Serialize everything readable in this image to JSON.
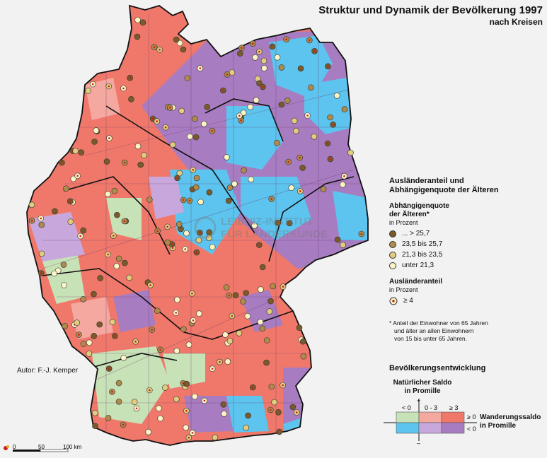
{
  "title": "Struktur und Dynamik der Bevölkerung 1997",
  "subtitle": "nach Kreisen",
  "author": "Autor:  F.-J. Kemper",
  "watermark_line1": "LEIBNIZ-INSTITUT",
  "watermark_line2": "FÜR LÄNDERKUNDE",
  "legend": {
    "heading_line1": "Ausländeranteil und",
    "heading_line2": "Abhängigenquote der Älteren",
    "dependency": {
      "title_line1": "Abhängigenquote",
      "title_line2": "der Älteren*",
      "unit": "in Prozent",
      "classes": [
        {
          "label": "... > 25,7",
          "color": "#7a5a2a"
        },
        {
          "label": "23,5 bis 25,7",
          "color": "#b08a4a"
        },
        {
          "label": "21,3 bis 23,5",
          "color": "#e2cc7e"
        },
        {
          "label": "unter 21,3",
          "color": "#fbf5c6"
        }
      ]
    },
    "foreigners": {
      "title": "Ausländeranteil",
      "unit": "in Prozent",
      "label": "≥ 4",
      "marker_color": "#c8201c"
    },
    "footnote_line1": "* Anteil der Einwohner von 65 Jahren",
    "footnote_line2": "und älter an allen Einwohnern",
    "footnote_line3": "von 15 bis unter 65 Jahren.",
    "development": {
      "title": "Bevölkerungsentwicklung",
      "natural_line1": "Natürlicher Saldo",
      "natural_line2": "in Promille",
      "natural_classes": [
        "< 0",
        "0 - 3",
        "≥ 3"
      ],
      "migration_line1": "Wanderungssaldo",
      "migration_line2": "in Promille",
      "migration_classes": [
        "≥ 0",
        "< 0"
      ],
      "plus": "+",
      "minus": "–",
      "matrix_colors": {
        "pos_low": "#c8e2b8",
        "pos_mid": "#f4a8a0",
        "pos_high": "#f0786a",
        "neg_low": "#5cc4ee",
        "neg_mid": "#c8a8dc",
        "neg_high": "#a87cc0"
      }
    }
  },
  "scale": {
    "labels": [
      "0",
      "50",
      "100 km"
    ]
  },
  "map_colors": {
    "red": "#f0786a",
    "purple": "#a87cc0",
    "blue": "#5cc4ee",
    "green": "#c8e2b8",
    "pink": "#f4a8a0",
    "lilac": "#c8a8dc"
  }
}
